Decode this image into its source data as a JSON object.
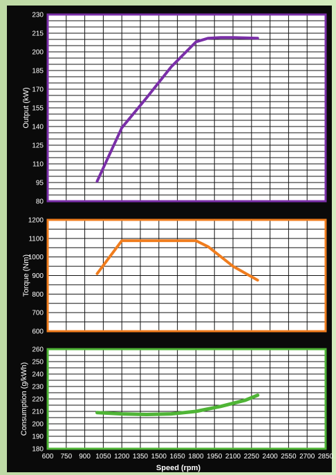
{
  "chart_data": [
    {
      "type": "line",
      "ylabel": "Output (kW)",
      "ylim": [
        80,
        230
      ],
      "yticks": [
        80,
        95,
        110,
        125,
        140,
        155,
        170,
        185,
        200,
        215,
        230
      ],
      "xlim": [
        600,
        2850
      ],
      "color": "#7a2fa8",
      "grid": true,
      "series": [
        {
          "x": [
            1000,
            1200,
            1400,
            1600,
            1800,
            1900,
            2000,
            2100,
            2300
          ],
          "y": [
            96,
            139,
            163,
            188,
            208,
            211,
            211.5,
            211.5,
            211
          ]
        }
      ]
    },
    {
      "type": "line",
      "ylabel": "Torque (Nm)",
      "ylim": [
        600,
        1200
      ],
      "yticks": [
        600,
        700,
        800,
        900,
        1000,
        1100,
        1200
      ],
      "xlim": [
        600,
        2850
      ],
      "color": "#f07d1e",
      "grid": true,
      "series": [
        {
          "x": [
            1000,
            1200,
            1400,
            1600,
            1800,
            1900,
            2100,
            2300
          ],
          "y": [
            910,
            1088,
            1088,
            1088,
            1088,
            1055,
            950,
            875
          ]
        }
      ]
    },
    {
      "type": "line",
      "ylabel": "Consumption (g/kWh)",
      "xlabel": "Speed (rpm)",
      "ylim": [
        180,
        260
      ],
      "yticks": [
        180,
        190,
        200,
        210,
        220,
        230,
        240,
        250,
        260
      ],
      "xlim": [
        600,
        2850
      ],
      "xticks": [
        600,
        750,
        900,
        1050,
        1200,
        1350,
        1500,
        1650,
        1800,
        1950,
        2100,
        2250,
        2400,
        2550,
        2700,
        2850
      ],
      "color": "#4fb536",
      "grid": true,
      "series": [
        {
          "x": [
            1000,
            1200,
            1400,
            1600,
            1800,
            2000,
            2200,
            2300
          ],
          "y": [
            209,
            208,
            207.5,
            208,
            210,
            214,
            219,
            223
          ]
        }
      ]
    }
  ]
}
